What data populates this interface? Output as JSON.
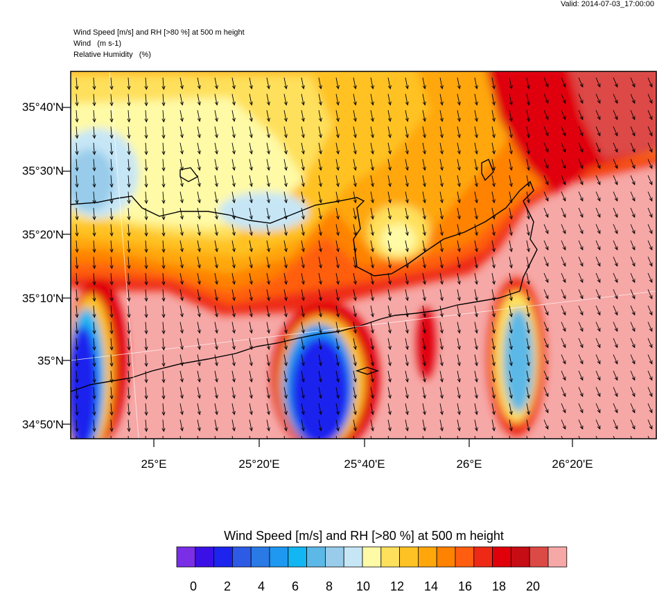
{
  "header": {
    "valid": "Valid: 2014-07-03_17:00:00",
    "line1": "Wind Speed [m/s] and RH [>80 %] at 500 m height",
    "line2": "Wind   (m s-1)",
    "line3": "Relative Humidity   (%)"
  },
  "map": {
    "lat_labels": [
      "35°40'N",
      "35°30'N",
      "35°20'N",
      "35°10'N",
      "35°N",
      "34°50'N"
    ],
    "lon_labels": [
      "25°E",
      "25°20'E",
      "25°40'E",
      "26°E",
      "26°20'E"
    ]
  },
  "colorbar": {
    "title": "Wind Speed [m/s] and RH [>80 %] at 500 m height",
    "labels": [
      "0",
      "2",
      "4",
      "6",
      "8",
      "10",
      "12",
      "14",
      "16",
      "18",
      "20"
    ],
    "colors": [
      "#7a2ee6",
      "#3a10e6",
      "#1c24ee",
      "#2e5be6",
      "#2a7ae6",
      "#1e98f0",
      "#12b6f2",
      "#5cb8e6",
      "#98ccea",
      "#c6e6f6",
      "#fffaa6",
      "#ffe05c",
      "#ffc224",
      "#ffa70a",
      "#ff8200",
      "#ff5e10",
      "#ee2a16",
      "#e0000a",
      "#c60c14",
      "#dc4a46",
      "#f6a8a6"
    ]
  },
  "palette": {
    "pink": "#f6a8a6",
    "darkred": "#c60c14",
    "red": "#e0000a",
    "lightblue": "#c6e6f6",
    "blue": "#1c24ee"
  }
}
